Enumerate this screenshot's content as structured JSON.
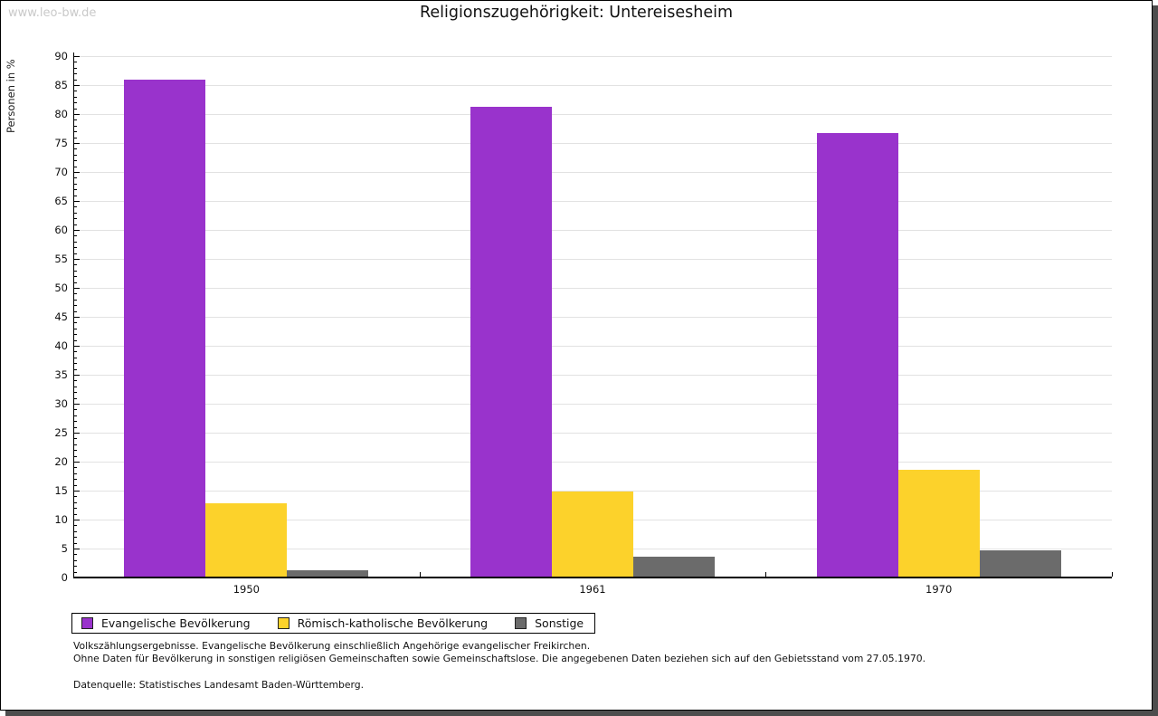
{
  "header": {
    "watermark": "www.leo-bw.de",
    "title": "Religionszugehörigkeit: Untereisesheim"
  },
  "chart_data": {
    "type": "bar",
    "title": "Religionszugehörigkeit: Untereisesheim",
    "categories": [
      "1950",
      "1961",
      "1970"
    ],
    "series": [
      {
        "name": "Evangelische Bevölkerung",
        "color": "#9933cc",
        "values": [
          86.0,
          81.2,
          76.7
        ]
      },
      {
        "name": "Römisch-katholische Bevölkerung",
        "color": "#fcd22b",
        "values": [
          12.8,
          14.9,
          18.6
        ]
      },
      {
        "name": "Sonstige",
        "color": "#6b6b6b",
        "values": [
          1.3,
          3.6,
          4.7
        ]
      }
    ],
    "ylabel": "Personen in %",
    "xlabel": "",
    "ylim": [
      0,
      90
    ],
    "ytick_major": 5,
    "ytick_minor": 1,
    "grid": true,
    "legend_position": "bottom",
    "gridline_color": "#e2e2e2"
  },
  "footnotes": {
    "line1": "Volkszählungsergebnisse. Evangelische Bevölkerung einschließlich Angehörige evangelischer Freikirchen.",
    "line2": "Ohne Daten für Bevölkerung in sonstigen religiösen Gemeinschaften sowie Gemeinschaftslose. Die angegebenen Daten beziehen sich auf den Gebietsstand vom 27.05.1970.",
    "source": "Datenquelle: Statistisches Landesamt Baden-Württemberg."
  }
}
